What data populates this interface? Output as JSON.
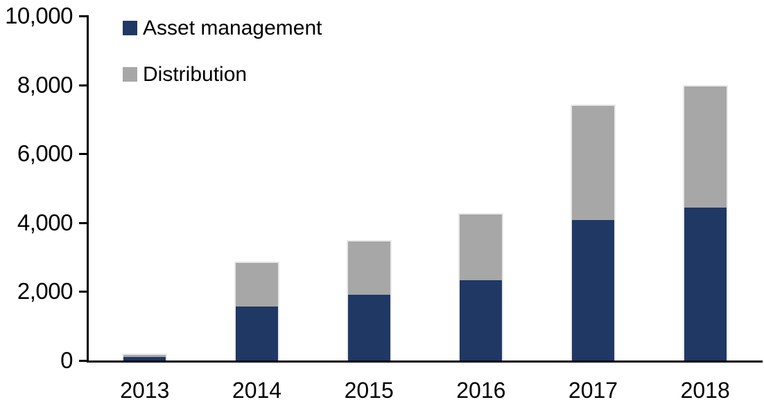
{
  "chart_data": {
    "type": "bar",
    "stacked": true,
    "title": "",
    "xlabel": "",
    "ylabel": "",
    "categories": [
      "2013",
      "2014",
      "2015",
      "2016",
      "2017",
      "2018"
    ],
    "series": [
      {
        "name": "Asset management",
        "color": "#1F3864",
        "values": [
          110,
          1560,
          1900,
          2330,
          4070,
          4440
        ]
      },
      {
        "name": "Distribution",
        "color": "#A7A7A7",
        "values": [
          100,
          1310,
          1600,
          1950,
          3350,
          3560
        ]
      }
    ],
    "ylim": [
      0,
      10000
    ],
    "yticks": [
      {
        "value": 0,
        "label": "0"
      },
      {
        "value": 2000,
        "label": "2,000"
      },
      {
        "value": 4000,
        "label": "4,000"
      },
      {
        "value": 6000,
        "label": "6,000"
      },
      {
        "value": 8000,
        "label": "8,000"
      },
      {
        "value": 10000,
        "label": "10,000"
      }
    ],
    "grid": false,
    "legend_position": "top-left",
    "axis_color": "#000000",
    "bar_outline_color": "#E8E8E8",
    "background": "#FFFFFF"
  }
}
